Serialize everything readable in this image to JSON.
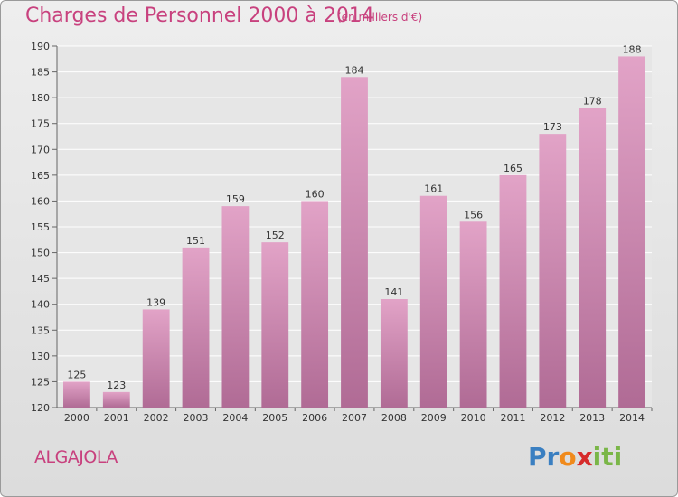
{
  "header": {
    "title": "Charges de Personnel 2000 à 2014",
    "subtitle": "(en milliers d'€)"
  },
  "footer": {
    "place": "ALGAJOLA",
    "logo_text": "Proxiti",
    "logo_letters": [
      "P",
      "r",
      "o",
      "x",
      "i",
      "t",
      "i"
    ],
    "logo_colors": [
      "#3a7fc1",
      "#3a7fc1",
      "#f08a1c",
      "#d62b2b",
      "#7ab648",
      "#7ab648",
      "#7ab648"
    ]
  },
  "colors": {
    "bar_top": "#e2a3c7",
    "bar_bottom": "#b06b95",
    "title": "#c8417e"
  },
  "chart_data": {
    "type": "bar",
    "title": "Charges de Personnel 2000 à 2014",
    "subtitle": "(en milliers d'€)",
    "categories": [
      "2000",
      "2001",
      "2002",
      "2003",
      "2004",
      "2005",
      "2006",
      "2007",
      "2008",
      "2009",
      "2010",
      "2011",
      "2012",
      "2013",
      "2014"
    ],
    "values": [
      125,
      123,
      139,
      151,
      159,
      152,
      160,
      184,
      141,
      161,
      156,
      165,
      173,
      178,
      188
    ],
    "ylim": [
      120,
      190
    ],
    "yticks": [
      120,
      125,
      130,
      135,
      140,
      145,
      150,
      155,
      160,
      165,
      170,
      175,
      180,
      185,
      190
    ],
    "grid": true
  }
}
